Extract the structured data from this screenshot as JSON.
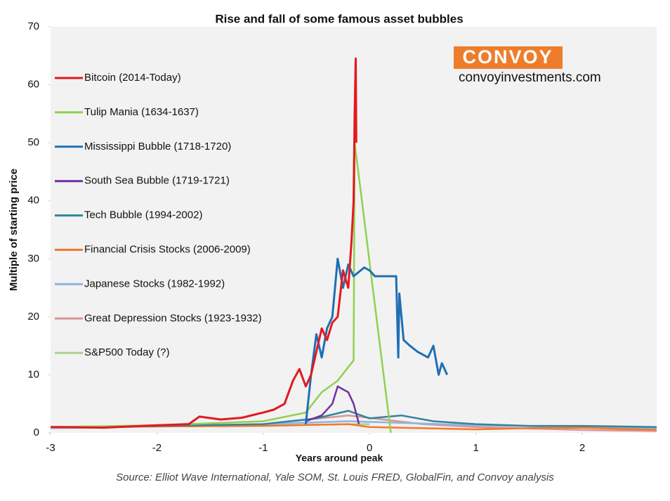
{
  "chart_data": {
    "type": "line",
    "title": "Rise and fall of some famous asset bubbles",
    "x_label": "Years around peak",
    "y_label": "Multiple of starting price",
    "source": "Source: Elliot Wave International, Yale SOM, St. Louis FRED, GlobalFin, and Convoy analysis",
    "annotations": [
      "CONVOY",
      "convoyinvestments.com"
    ],
    "xlim": [
      -3,
      2.7
    ],
    "xticks": [
      -3,
      -2,
      -1,
      0,
      1,
      2
    ],
    "ylim": [
      0,
      70
    ],
    "yticks": [
      0,
      10,
      20,
      30,
      40,
      50,
      60,
      70
    ],
    "grid": false,
    "series": [
      {
        "name": "Bitcoin (2014-Today)",
        "color": "#e3191f",
        "x": [
          -3,
          -2.5,
          -2,
          -1.7,
          -1.6,
          -1.4,
          -1.2,
          -1,
          -0.9,
          -0.8,
          -0.72,
          -0.66,
          -0.6,
          -0.55,
          -0.5,
          -0.45,
          -0.4,
          -0.35,
          -0.3,
          -0.25,
          -0.2,
          -0.17,
          -0.15,
          -0.14,
          -0.13,
          -0.125
        ],
        "values": [
          1,
          0.9,
          1.3,
          1.5,
          2.8,
          2.3,
          2.6,
          3.5,
          4,
          5,
          9,
          11,
          8,
          10,
          14,
          18,
          16,
          19,
          20,
          28,
          25,
          33,
          40,
          55,
          64.5,
          50
        ]
      },
      {
        "name": "Tulip Mania (1634-1637)",
        "color": "#92d050",
        "x": [
          -3,
          -2,
          -1,
          -0.6,
          -0.45,
          -0.3,
          -0.15,
          -0.14,
          0.2
        ],
        "values": [
          1,
          1.3,
          2,
          3.5,
          7,
          9,
          12.5,
          50,
          0
        ]
      },
      {
        "name": "Mississippi Bubble (1718-1720)",
        "color": "#1f6fb4",
        "x": [
          -0.6,
          -0.55,
          -0.5,
          -0.45,
          -0.4,
          -0.35,
          -0.3,
          -0.25,
          -0.2,
          -0.15,
          -0.05,
          0,
          0.05,
          0.25,
          0.27,
          0.28,
          0.32,
          0.38,
          0.45,
          0.55,
          0.6,
          0.65,
          0.68,
          0.73
        ],
        "values": [
          1.5,
          10,
          17,
          13,
          18,
          20,
          30,
          25,
          29,
          27,
          28.5,
          28,
          27,
          27,
          13,
          24,
          16,
          15,
          14,
          13,
          15,
          10,
          12,
          10
        ]
      },
      {
        "name": "South Sea Bubble (1719-1721)",
        "color": "#7030a0",
        "x": [
          -0.6,
          -0.45,
          -0.35,
          -0.3,
          -0.25,
          -0.2,
          -0.15,
          -0.1
        ],
        "values": [
          2,
          3,
          5,
          8,
          7.5,
          7,
          5,
          1.5
        ]
      },
      {
        "name": "Tech Bubble (1994-2002)",
        "color": "#31859c",
        "x": [
          -3,
          -2,
          -1,
          -0.5,
          -0.2,
          0,
          0.3,
          0.6,
          1,
          1.5,
          2,
          2.7
        ],
        "values": [
          1,
          1.2,
          1.5,
          2.5,
          3.8,
          2.5,
          3,
          2,
          1.5,
          1.2,
          1.2,
          1
        ]
      },
      {
        "name": "Financial Crisis Stocks (2006-2009)",
        "color": "#f4782a",
        "x": [
          -3,
          -2,
          -1,
          -0.2,
          0,
          0.5,
          1,
          1.5,
          2,
          2.7
        ],
        "values": [
          1,
          1.1,
          1.2,
          1.5,
          1,
          0.8,
          0.6,
          0.8,
          0.9,
          0.5
        ]
      },
      {
        "name": "Japanese Stocks (1982-1992)",
        "color": "#8eb4e3",
        "x": [
          -3,
          -2,
          -1,
          -0.2,
          0.5,
          1,
          2,
          2.7
        ],
        "values": [
          0.8,
          1.1,
          1.5,
          2,
          1.6,
          1.3,
          1,
          0.8
        ]
      },
      {
        "name": "Great Depression Stocks (1923-1932)",
        "color": "#d99594",
        "x": [
          -3,
          -2,
          -1,
          -0.2,
          0.5,
          1,
          2,
          2.7
        ],
        "values": [
          0.9,
          1.1,
          1.5,
          3,
          1.5,
          1,
          0.5,
          0.3
        ]
      },
      {
        "name": "S&P500 Today (?)",
        "color": "#a9d18e",
        "x": [
          -3,
          -2,
          -1,
          -0.5,
          0
        ],
        "values": [
          1,
          1.1,
          1.3,
          1.4,
          1.5
        ]
      }
    ]
  }
}
